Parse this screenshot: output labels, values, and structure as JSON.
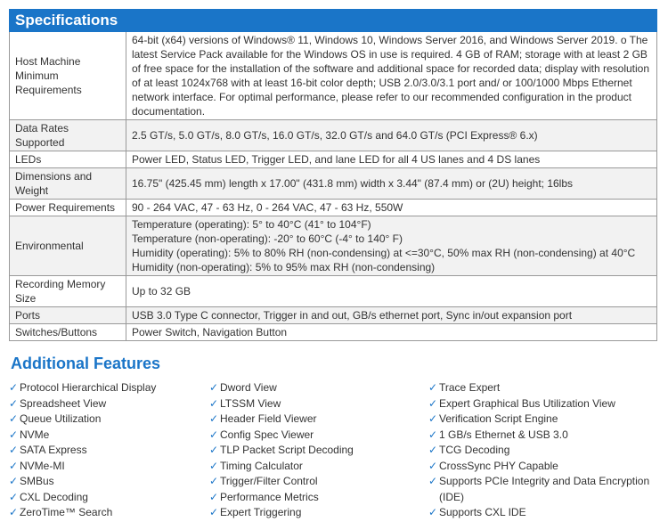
{
  "specifications": {
    "title": "Specifications",
    "rows": [
      {
        "label": "Host Machine Minimum Requirements",
        "value": "64-bit (x64) versions of Windows® 11, Windows 10, Windows Server 2016, and Windows Server 2019. o The latest Service Pack available for the Windows OS in use is required.  4 GB of RAM; storage with at least 2 GB of free space for the installation of the software and additional space for recorded data; display with resolution of at least 1024x768 with at least 16-bit color depth; USB 2.0/3.0/3.1 port and/ or 100/1000 Mbps Ethernet network interface. For optimal performance, please refer to our recommended configuration in the product documentation."
      },
      {
        "label": "Data Rates Supported",
        "value": "2.5 GT/s, 5.0 GT/s, 8.0 GT/s, 16.0 GT/s, 32.0 GT/s and 64.0 GT/s (PCI Express® 6.x)"
      },
      {
        "label": "LEDs",
        "value": "Power LED, Status LED, Trigger LED, and lane LED for all 4 US lanes and 4 DS lanes"
      },
      {
        "label": "Dimensions and Weight",
        "value": "16.75\" (425.45 mm) length x 17.00\" (431.8 mm) width x 3.44\" (87.4 mm) or (2U) height; 16lbs"
      },
      {
        "label": "Power Requirements",
        "value": "90 - 264 VAC, 47 - 63 Hz, 0 - 264 VAC, 47 - 63 Hz, 550W"
      },
      {
        "label": "Environmental",
        "lines": [
          "Temperature (operating): 5° to 40°C (41° to 104°F)",
          "Temperature (non-operating): -20° to 60°C (-4° to 140° F)",
          "Humidity (operating): 5% to 80% RH (non-condensing) at <=30°C, 50% max RH (non-condensing) at 40°C",
          "Humidity (non-operating): 5% to 95% max RH (non-condensing)"
        ]
      },
      {
        "label": "Recording Memory Size",
        "value": "Up to 32 GB"
      },
      {
        "label": "Ports",
        "value": "USB 3.0 Type C connector, Trigger in and out, GB/s ethernet port, Sync in/out expansion port"
      },
      {
        "label": "Switches/Buttons",
        "value": "Power Switch, Navigation Button"
      }
    ]
  },
  "features": {
    "title": "Additional Features",
    "check": "✓",
    "columns": [
      [
        "Protocol Hierarchical Display",
        "Spreadsheet View",
        "Queue Utilization",
        "NVMe",
        "SATA Express",
        "NVMe-MI",
        "SMBus",
        "CXL Decoding",
        "ZeroTime™ Search"
      ],
      [
        "Dword View",
        "LTSSM View",
        "Header Field Viewer",
        "Config Spec Viewer",
        "TLP Packet Script Decoding",
        "Timing Calculator",
        "Trigger/Filter Control",
        "Performance Metrics",
        "Expert Triggering"
      ],
      [
        "Trace Expert",
        "Expert Graphical Bus Utilization View",
        "Verification Script Engine",
        "1 GB/s Ethernet & USB 3.0",
        "TCG Decoding",
        "CrossSync PHY Capable",
        "Supports PCIe Integrity and Data Encryption (IDE)",
        "Supports CXL IDE"
      ]
    ]
  },
  "colors": {
    "accent": "#1a75c8"
  }
}
